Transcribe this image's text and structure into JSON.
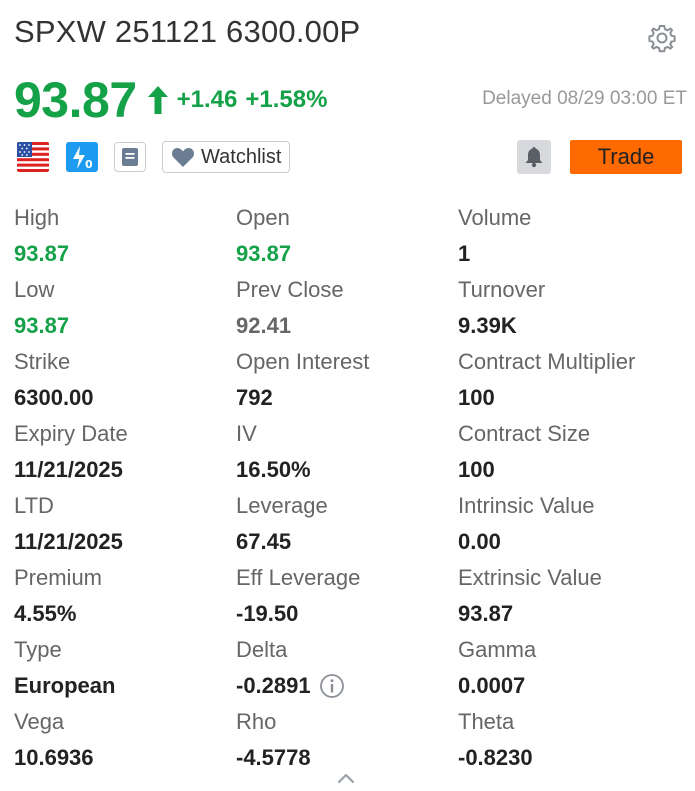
{
  "header": {
    "title": "SPXW 251121 6300.00P",
    "settings_icon": "gear-icon"
  },
  "quote": {
    "price": "93.87",
    "change": "+1.46",
    "change_pct": "+1.58%",
    "direction_icon": "arrow-up-icon",
    "delayed": "Delayed 08/29 03:00 ET",
    "color_up": "#14a148"
  },
  "actions": {
    "market_flag_icon": "us-flag-icon",
    "lightning_icon": "lightning-icon",
    "note_icon": "note-icon",
    "watchlist_label": "Watchlist",
    "alert_icon": "bell-icon",
    "trade_label": "Trade",
    "trade_color": "#ff6a00"
  },
  "stats": [
    {
      "label": "High",
      "value": "93.87",
      "tone": "green"
    },
    {
      "label": "Open",
      "value": "93.87",
      "tone": "green"
    },
    {
      "label": "Volume",
      "value": "1",
      "tone": "default"
    },
    {
      "label": "Low",
      "value": "93.87",
      "tone": "green"
    },
    {
      "label": "Prev Close",
      "value": "92.41",
      "tone": "gray"
    },
    {
      "label": "Turnover",
      "value": "9.39K",
      "tone": "default"
    },
    {
      "label": "Strike",
      "value": "6300.00",
      "tone": "default"
    },
    {
      "label": "Open Interest",
      "value": "792",
      "tone": "default"
    },
    {
      "label": "Contract Multiplier",
      "value": "100",
      "tone": "default"
    },
    {
      "label": "Expiry Date",
      "value": "11/21/2025",
      "tone": "default"
    },
    {
      "label": "IV",
      "value": "16.50%",
      "tone": "default"
    },
    {
      "label": "Contract Size",
      "value": "100",
      "tone": "default"
    },
    {
      "label": "LTD",
      "value": "11/21/2025",
      "tone": "default"
    },
    {
      "label": "Leverage",
      "value": "67.45",
      "tone": "default"
    },
    {
      "label": "Intrinsic Value",
      "value": "0.00",
      "tone": "default"
    },
    {
      "label": "Premium",
      "value": "4.55%",
      "tone": "default"
    },
    {
      "label": "Eff Leverage",
      "value": "-19.50",
      "tone": "default"
    },
    {
      "label": "Extrinsic Value",
      "value": "93.87",
      "tone": "default"
    },
    {
      "label": "Type",
      "value": "European",
      "tone": "default"
    },
    {
      "label": "Delta",
      "value": "-0.2891",
      "tone": "default",
      "info": true
    },
    {
      "label": "Gamma",
      "value": "0.0007",
      "tone": "default"
    },
    {
      "label": "Vega",
      "value": "10.6936",
      "tone": "default"
    },
    {
      "label": "Rho",
      "value": "-4.5778",
      "tone": "default"
    },
    {
      "label": "Theta",
      "value": "-0.8230",
      "tone": "default"
    }
  ],
  "footer": {
    "collapse_icon": "chevron-up-icon"
  }
}
